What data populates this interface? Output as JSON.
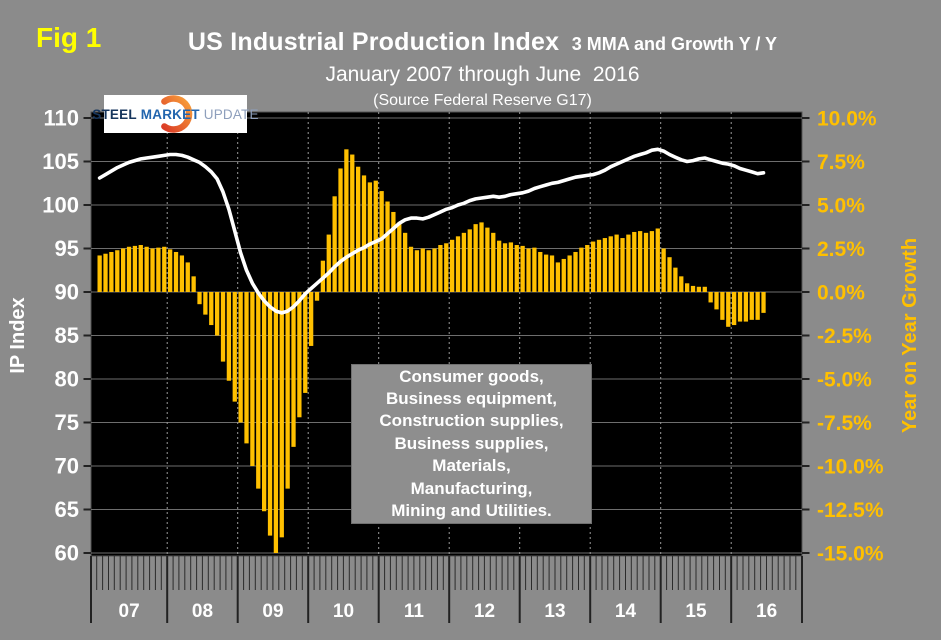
{
  "figure_label": "Fig 1",
  "header": {
    "title": "US Industrial Production Index",
    "title_suffix": "3 MMA and Growth Y / Y",
    "subtitle": "January 2007 through June  2016",
    "source": "(Source Federal Reserve G17)"
  },
  "logo": {
    "word1": "STEEL",
    "word2": "MARKET",
    "word3": "UPDATE",
    "word1_color": "#17365D",
    "word2_color": "#2265AE",
    "word3_color": "#8E9FBC",
    "swoosh_color_start": "#DB3B26",
    "swoosh_color_end": "#F9A23B"
  },
  "annotation": {
    "lines": [
      "Consumer goods,",
      "Business equipment,",
      "Construction supplies,",
      "Business supplies,",
      "Materials,",
      "Manufacturing,",
      "Mining and Utilities."
    ]
  },
  "colors": {
    "background": "#8B8B8B",
    "plot_background": "#000000",
    "bar_color": "#FFC000",
    "line_color": "#FFFFFF",
    "fig_label_color": "#FFFF00",
    "left_axis_text": "#FFFFFF",
    "right_axis_text": "#FFC000",
    "gridline": "#6E6E6E",
    "year_divider_dotted": "#9A9A9A",
    "tick": "#222222"
  },
  "chart_data": {
    "type": "bar",
    "title": "US Industrial Production Index 3 MMA and Growth Y / Y",
    "subtitle": "January 2007 through June 2016",
    "x": {
      "start_month": "2007-01",
      "end_month": "2016-06",
      "axis_extends_to": "2016-12",
      "year_tick_labels": [
        "07",
        "08",
        "09",
        "10",
        "11",
        "12",
        "13",
        "14",
        "15",
        "16"
      ]
    },
    "left_axis": {
      "label": "IP Index",
      "min": 60,
      "max": 110,
      "ticks": [
        110,
        105,
        100,
        95,
        90,
        85,
        80,
        75,
        70,
        65,
        60
      ]
    },
    "right_axis": {
      "label": "Year on Year Growth",
      "min": -15,
      "max": 10,
      "tick_labels": [
        "10.0%",
        "7.5%",
        "5.0%",
        "2.5%",
        "0.0%",
        "-2.5%",
        "-5.0%",
        "-7.5%",
        "-10.0%",
        "-12.5%",
        "-15.0%"
      ]
    },
    "grid": true,
    "legend_position": "none",
    "series": [
      {
        "name": "IP Index (3 MMA)",
        "type": "line",
        "axis": "left",
        "color": "#FFFFFF",
        "values": [
          103.1,
          103.5,
          103.9,
          104.3,
          104.6,
          104.9,
          105.1,
          105.3,
          105.4,
          105.5,
          105.6,
          105.7,
          105.8,
          105.8,
          105.7,
          105.5,
          105.2,
          104.9,
          104.4,
          103.8,
          103.0,
          101.5,
          99.5,
          97.0,
          94.5,
          92.5,
          91.0,
          89.9,
          89.0,
          88.3,
          87.8,
          87.6,
          87.8,
          88.3,
          89.0,
          89.8,
          90.4,
          91.0,
          91.6,
          92.2,
          92.9,
          93.5,
          94.0,
          94.4,
          94.8,
          95.1,
          95.5,
          95.8,
          96.1,
          96.7,
          97.3,
          97.9,
          98.3,
          98.5,
          98.5,
          98.4,
          98.6,
          98.9,
          99.2,
          99.5,
          99.7,
          100.0,
          100.2,
          100.5,
          100.7,
          100.8,
          100.9,
          101.0,
          100.9,
          101.0,
          101.2,
          101.3,
          101.4,
          101.6,
          101.9,
          102.1,
          102.3,
          102.5,
          102.6,
          102.8,
          103.0,
          103.2,
          103.3,
          103.4,
          103.5,
          103.7,
          104.0,
          104.4,
          104.7,
          105.0,
          105.3,
          105.6,
          105.8,
          106.0,
          106.3,
          106.4,
          106.2,
          105.8,
          105.5,
          105.2,
          105.0,
          105.1,
          105.3,
          105.4,
          105.2,
          105.0,
          104.8,
          104.7,
          104.5,
          104.2,
          104.0,
          103.8,
          103.6,
          103.7
        ]
      },
      {
        "name": "Growth Y / Y",
        "type": "bar",
        "axis": "right",
        "unit": "%",
        "color": "#FFC000",
        "values": [
          2.1,
          2.2,
          2.3,
          2.4,
          2.5,
          2.6,
          2.65,
          2.7,
          2.6,
          2.5,
          2.55,
          2.6,
          2.45,
          2.3,
          2.1,
          1.7,
          0.9,
          -0.7,
          -1.3,
          -1.9,
          -2.5,
          -4.0,
          -5.1,
          -6.3,
          -7.5,
          -8.7,
          -10.0,
          -11.3,
          -12.6,
          -14.0,
          -15.0,
          -14.1,
          -11.3,
          -8.9,
          -7.2,
          -5.8,
          -3.1,
          -0.5,
          1.8,
          3.3,
          5.5,
          7.1,
          8.2,
          7.9,
          7.2,
          6.7,
          6.3,
          6.4,
          5.8,
          5.2,
          4.6,
          4.0,
          3.4,
          2.6,
          2.4,
          2.5,
          2.4,
          2.5,
          2.7,
          2.8,
          3.0,
          3.2,
          3.4,
          3.6,
          3.9,
          4.0,
          3.7,
          3.4,
          2.95,
          2.8,
          2.85,
          2.7,
          2.65,
          2.5,
          2.55,
          2.3,
          2.15,
          2.1,
          1.7,
          1.9,
          2.1,
          2.3,
          2.55,
          2.7,
          2.9,
          3.0,
          3.1,
          3.2,
          3.3,
          3.1,
          3.3,
          3.45,
          3.5,
          3.4,
          3.5,
          3.65,
          2.5,
          2.0,
          1.4,
          0.9,
          0.5,
          0.35,
          0.3,
          0.3,
          -0.6,
          -1.0,
          -1.6,
          -2.0,
          -1.9,
          -1.7,
          -1.7,
          -1.6,
          -1.6,
          -1.2
        ]
      }
    ]
  }
}
